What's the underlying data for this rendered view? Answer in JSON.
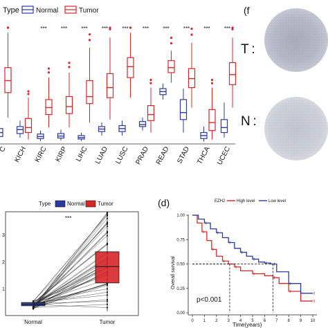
{
  "panel_a": {
    "legend_title": "Type",
    "legend_items": [
      {
        "label": "Normal",
        "color": "#2b3a9e"
      },
      {
        "label": "Tumor",
        "color": "#d62728"
      }
    ]
  },
  "panel_f": {
    "label": "(f",
    "tumor_label": "T :",
    "normal_label": "N :"
  },
  "panel_c": {
    "legend_title": "Type",
    "legend_items": [
      {
        "label": "Normal",
        "color": "#2b3a9e"
      },
      {
        "label": "Tumor",
        "color": "#d62728"
      }
    ],
    "significance": "***",
    "y_ticks": [
      "1",
      "2",
      "3"
    ],
    "x_labels": [
      "Normal",
      "Tumor"
    ]
  },
  "panel_d": {
    "label": "(d)",
    "legend_title": "EZH2",
    "legend_items": [
      {
        "label": "High level",
        "color": "#d62728"
      },
      {
        "label": "Low level",
        "color": "#2b3a9e"
      }
    ],
    "pvalue": "p<0.001",
    "ylabel": "Overall survival",
    "xlabel": "Time(years)",
    "y_ticks": [
      "0.00",
      "0.25",
      "0.50",
      "0.75",
      "1.00"
    ],
    "x_ticks": [
      "0",
      "1",
      "2",
      "3",
      "4",
      "5",
      "6",
      "7",
      "8",
      "9",
      "10"
    ]
  },
  "chart_data": [
    {
      "type": "box",
      "categories": [
        "C",
        "KICH",
        "KIRC",
        "KIRP",
        "LIHC",
        "LUAD",
        "LUSC",
        "PRAD",
        "READ",
        "STAD",
        "THCA",
        "UCEC"
      ],
      "significance": [
        "",
        "",
        "***",
        "***",
        "***",
        "***",
        "***",
        "***",
        "***",
        "***",
        "***",
        "***"
      ],
      "series": [
        {
          "name": "Normal",
          "values": [
            {
              "q1": 0.6,
              "median": 1.0,
              "q3": 1.4,
              "lo": 0.2,
              "hi": 2.0
            },
            {
              "q1": 0.9,
              "median": 1.3,
              "q3": 1.6,
              "lo": 0.5,
              "hi": 2.2
            },
            {
              "q1": 0.4,
              "median": 0.6,
              "q3": 0.85,
              "lo": 0.15,
              "hi": 1.2
            },
            {
              "q1": 0.45,
              "median": 0.65,
              "q3": 0.9,
              "lo": 0.2,
              "hi": 1.3
            },
            {
              "q1": 0.35,
              "median": 0.5,
              "q3": 0.7,
              "lo": 0.15,
              "hi": 1.0
            },
            {
              "q1": 1.1,
              "median": 1.35,
              "q3": 1.6,
              "lo": 0.7,
              "hi": 2.0
            },
            {
              "q1": 1.1,
              "median": 1.4,
              "q3": 1.7,
              "lo": 0.7,
              "hi": 2.2
            },
            {
              "q1": 1.6,
              "median": 1.8,
              "q3": 2.1,
              "lo": 1.2,
              "hi": 2.5
            },
            {
              "q1": 4.8,
              "median": 5.1,
              "q3": 5.4,
              "lo": 4.3,
              "hi": 5.9
            },
            {
              "q1": 2.3,
              "median": 3.0,
              "q3": 4.3,
              "lo": 1.0,
              "hi": 5.4
            },
            {
              "q1": 0.4,
              "median": 0.7,
              "q3": 1.0,
              "lo": 0.1,
              "hi": 1.6
            },
            {
              "q1": 1.0,
              "median": 1.5,
              "q3": 2.3,
              "lo": 0.5,
              "hi": 4.0
            }
          ]
        },
        {
          "name": "Tumor",
          "values": [
            {
              "q1": 5.0,
              "median": 6.2,
              "q3": 7.5,
              "lo": 2.5,
              "hi": 11.0
            },
            {
              "q1": 1.0,
              "median": 1.5,
              "q3": 2.4,
              "lo": 0.3,
              "hi": 4.5
            },
            {
              "q1": 2.8,
              "median": 3.5,
              "q3": 4.3,
              "lo": 1.5,
              "hi": 6.5
            },
            {
              "q1": 2.9,
              "median": 3.6,
              "q3": 4.6,
              "lo": 1.5,
              "hi": 7.0
            },
            {
              "q1": 3.9,
              "median": 4.6,
              "q3": 6.2,
              "lo": 2.0,
              "hi": 9.5
            },
            {
              "q1": 4.5,
              "median": 5.5,
              "q3": 6.9,
              "lo": 2.3,
              "hi": 10.5
            },
            {
              "q1": 6.5,
              "median": 7.6,
              "q3": 8.5,
              "lo": 4.5,
              "hi": 11.0
            },
            {
              "q1": 2.2,
              "median": 2.8,
              "q3": 3.7,
              "lo": 1.0,
              "hi": 5.5
            },
            {
              "q1": 7.0,
              "median": 7.5,
              "q3": 8.2,
              "lo": 6.0,
              "hi": 9.2
            },
            {
              "q1": 5.5,
              "median": 6.4,
              "q3": 7.4,
              "lo": 3.5,
              "hi": 10.0
            },
            {
              "q1": 1.2,
              "median": 2.0,
              "q3": 3.3,
              "lo": 0.3,
              "hi": 5.5
            },
            {
              "q1": 5.8,
              "median": 6.8,
              "q3": 8.0,
              "lo": 3.5,
              "hi": 10.5
            }
          ]
        }
      ]
    },
    {
      "type": "box",
      "categories": [
        "Normal",
        "Tumor"
      ],
      "series": [
        {
          "name": "Normal",
          "values": [
            {
              "q1": 0.33,
              "median": 0.38,
              "q3": 0.44,
              "lo": 0.22,
              "hi": 0.5
            }
          ]
        },
        {
          "name": "Tumor",
          "values": [
            {
              "q1": 1.1,
              "median": 1.65,
              "q3": 2.15,
              "lo": 0.15,
              "hi": 3.5
            }
          ]
        }
      ],
      "paired_pairs": 50,
      "ylim": [
        0,
        3.5
      ]
    },
    {
      "type": "line",
      "xlim": [
        0,
        10
      ],
      "ylim": [
        0,
        1.0
      ],
      "series": [
        {
          "name": "High level",
          "x": [
            0,
            0.4,
            0.8,
            1.2,
            1.6,
            2.0,
            2.5,
            3.0,
            3.5,
            4.0,
            5.0,
            6.0,
            6.7,
            7.2,
            8.0,
            9.0,
            10.0
          ],
          "y": [
            1.0,
            0.92,
            0.83,
            0.74,
            0.65,
            0.58,
            0.53,
            0.5,
            0.47,
            0.43,
            0.4,
            0.38,
            0.36,
            0.3,
            0.22,
            0.12,
            0.12
          ]
        },
        {
          "name": "Low level",
          "x": [
            0,
            0.5,
            1.0,
            1.5,
            2.0,
            2.5,
            3.0,
            3.5,
            4.0,
            4.5,
            5.0,
            5.5,
            6.0,
            6.5,
            6.7,
            7.0,
            8.0,
            9.0,
            10.0
          ],
          "y": [
            1.0,
            0.96,
            0.92,
            0.86,
            0.82,
            0.77,
            0.72,
            0.66,
            0.62,
            0.58,
            0.55,
            0.52,
            0.51,
            0.5,
            0.5,
            0.42,
            0.3,
            0.2,
            0.2
          ]
        }
      ],
      "median_survival": [
        3.1,
        6.7
      ]
    }
  ]
}
